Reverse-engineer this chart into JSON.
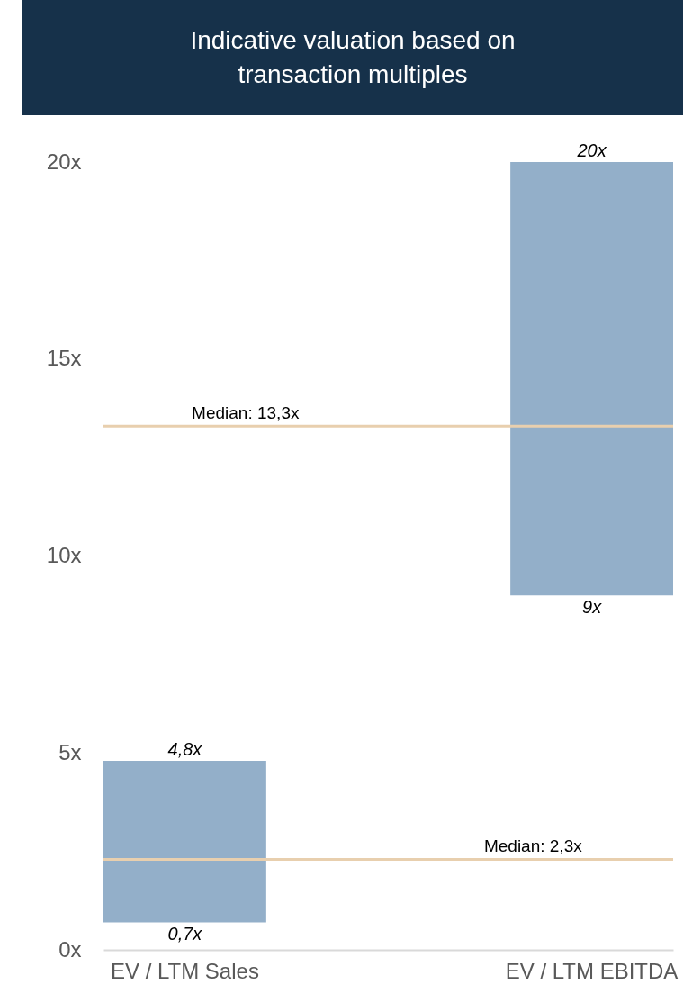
{
  "chart_data": {
    "type": "bar",
    "title": "Indicative valuation based on transaction multiples",
    "categories": [
      "EV / LTM Sales",
      "EV / LTM EBITDA"
    ],
    "base": [
      0.7,
      9
    ],
    "values": [
      4.1,
      11
    ],
    "color": "#93afc9",
    "ylim": [
      0,
      20
    ],
    "yticks": [
      {
        "value": 0,
        "label": "0x"
      },
      {
        "value": 5,
        "label": "5x"
      },
      {
        "value": 10,
        "label": "10x"
      },
      {
        "value": 15,
        "label": "15x"
      },
      {
        "value": 20,
        "label": "20x"
      }
    ],
    "grid": false,
    "ref_lines": [
      {
        "axis": "y",
        "value": 13.3,
        "label": "Median: 13,3x",
        "color": "#e8cfae"
      },
      {
        "axis": "y",
        "value": 2.3,
        "label": "Median: 2,3x",
        "color": "#e8cfae"
      }
    ],
    "annotations": [
      {
        "text": "4,8x",
        "x": "EV / LTM Sales",
        "y": 4.8
      },
      {
        "text": "0,7x",
        "x": "EV / LTM Sales",
        "y": 0.7
      },
      {
        "text": "20x",
        "x": "EV / LTM EBITDA",
        "y": 20
      },
      {
        "text": "9x",
        "x": "EV / LTM EBITDA",
        "y": 9
      }
    ]
  }
}
